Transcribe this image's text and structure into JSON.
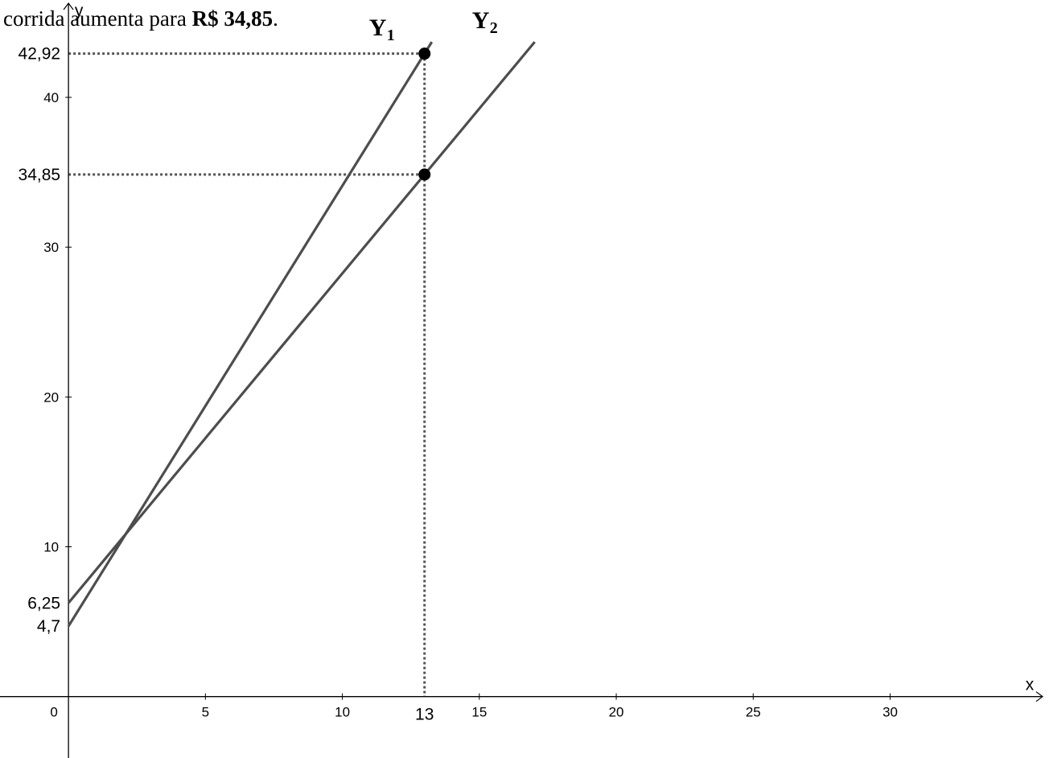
{
  "caption": {
    "prefix": "corrida aumenta para ",
    "bold": "R$ 34,85",
    "suffix": "."
  },
  "chart_data": {
    "type": "line",
    "xlabel": "x",
    "ylabel": "y",
    "origin_label": "0",
    "xlim": [
      -2.5,
      35.8
    ],
    "ylim": [
      -4.1,
      46.5
    ],
    "x_ticks": [
      {
        "value": 5,
        "label": "5"
      },
      {
        "value": 10,
        "label": "10"
      },
      {
        "value": 15,
        "label": "15"
      },
      {
        "value": 20,
        "label": "20"
      },
      {
        "value": 25,
        "label": "25"
      },
      {
        "value": 30,
        "label": "30"
      }
    ],
    "y_ticks": [
      {
        "value": 10,
        "label": "10"
      },
      {
        "value": 20,
        "label": "20"
      },
      {
        "value": 30,
        "label": "30"
      },
      {
        "value": 40,
        "label": "40"
      }
    ],
    "highlight_x": {
      "value": 13,
      "label": "13"
    },
    "highlight_y": [
      {
        "value": 6.25,
        "label": "6,25"
      },
      {
        "value": 4.7,
        "label": "4,7"
      },
      {
        "value": 34.85,
        "label": "34,85"
      },
      {
        "value": 42.92,
        "label": "42,92"
      }
    ],
    "series": [
      {
        "name": "Y",
        "subscript": "1",
        "intercept": 4.7,
        "slope": 2.94,
        "x": [
          0,
          13
        ],
        "y": [
          4.7,
          42.92
        ]
      },
      {
        "name": "Y",
        "subscript": "2",
        "intercept": 6.25,
        "slope": 2.2,
        "x": [
          0,
          13
        ],
        "y": [
          6.25,
          34.85
        ]
      }
    ],
    "points": [
      {
        "x": 13,
        "y": 42.92
      },
      {
        "x": 13,
        "y": 34.85
      }
    ],
    "grid": false,
    "colors": {
      "line": "#4d4d4d",
      "point": "#000000",
      "guide": "#555555"
    }
  }
}
